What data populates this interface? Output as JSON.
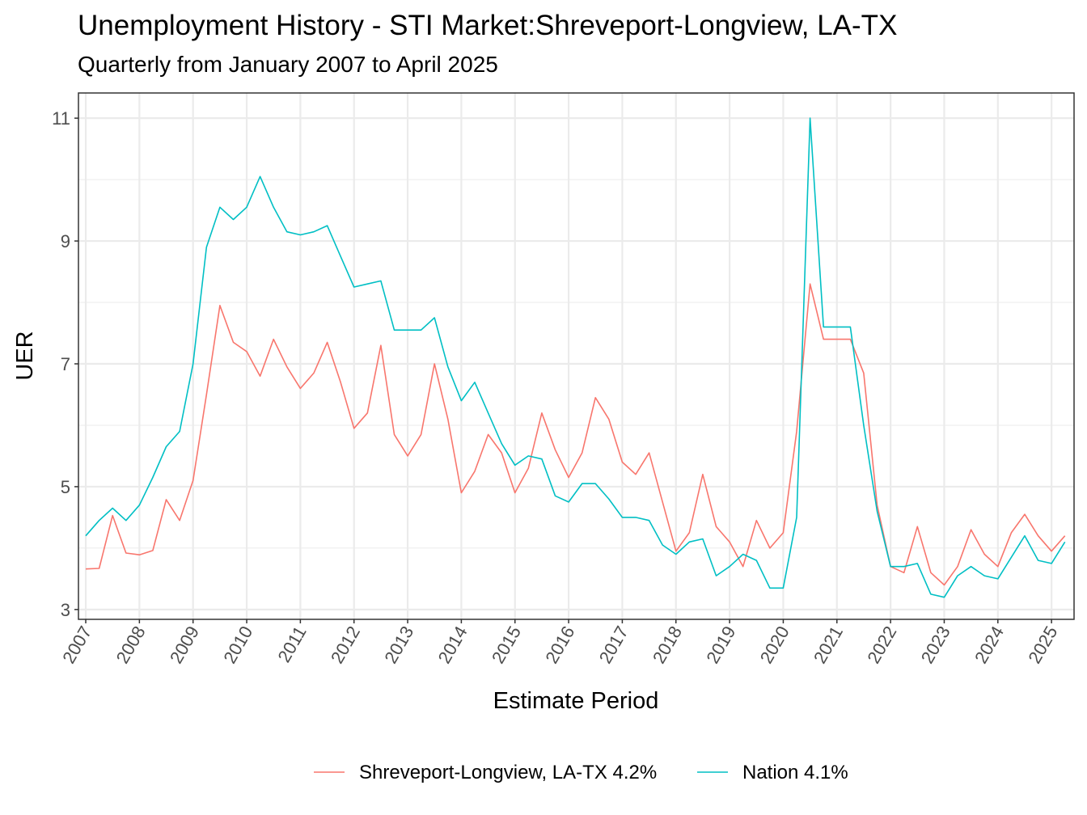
{
  "chart_data": {
    "type": "line",
    "title": "Unemployment History - STI Market:Shreveport-Longview, LA-TX",
    "subtitle": "Quarterly from January 2007 to April 2025",
    "xlabel": "Estimate Period",
    "ylabel": "UER",
    "x_ticks": [
      "2007",
      "2008",
      "2009",
      "2010",
      "2011",
      "2012",
      "2013",
      "2014",
      "2015",
      "2016",
      "2017",
      "2018",
      "2019",
      "2020",
      "2021",
      "2022",
      "2023",
      "2024",
      "2025"
    ],
    "y_ticks": [
      3,
      5,
      7,
      9,
      11
    ],
    "ylim": [
      2.84,
      11.41
    ],
    "xlim": [
      "2007-01",
      "2025-04"
    ],
    "grid": true,
    "legend_position": "bottom",
    "x_start": "2007-01",
    "x_step": "quarter",
    "series": [
      {
        "name": "Shreveport-Longview, LA-TX 4.2%",
        "color": "#F8766D",
        "values": [
          3.66,
          3.67,
          4.53,
          3.92,
          3.89,
          3.96,
          4.79,
          4.45,
          5.1,
          6.5,
          7.95,
          7.35,
          7.2,
          6.8,
          7.4,
          6.95,
          6.6,
          6.85,
          7.35,
          6.7,
          5.95,
          6.2,
          7.3,
          5.85,
          5.5,
          5.85,
          7.0,
          6.1,
          4.9,
          5.25,
          5.85,
          5.55,
          4.9,
          5.3,
          6.2,
          5.6,
          5.15,
          5.55,
          6.45,
          6.1,
          5.4,
          5.2,
          5.55,
          4.75,
          3.95,
          4.25,
          5.2,
          4.35,
          4.1,
          3.7,
          4.45,
          4.0,
          4.25,
          5.9,
          8.3,
          7.4,
          7.4,
          7.4,
          6.85,
          4.7,
          3.7,
          3.6,
          4.35,
          3.6,
          3.4,
          3.7,
          4.3,
          3.9,
          3.7,
          4.25,
          4.55,
          4.2,
          3.95,
          4.2
        ]
      },
      {
        "name": "Nation 4.1%",
        "color": "#00BFC4",
        "values": [
          4.2,
          4.45,
          4.65,
          4.45,
          4.7,
          5.15,
          5.65,
          5.9,
          7.0,
          8.9,
          9.55,
          9.35,
          9.55,
          10.05,
          9.55,
          9.15,
          9.1,
          9.15,
          9.25,
          8.75,
          8.25,
          8.3,
          8.35,
          7.55,
          7.55,
          7.55,
          7.75,
          6.95,
          6.4,
          6.7,
          6.2,
          5.7,
          5.35,
          5.5,
          5.45,
          4.85,
          4.75,
          5.05,
          5.05,
          4.8,
          4.5,
          4.5,
          4.45,
          4.05,
          3.9,
          4.1,
          4.15,
          3.55,
          3.7,
          3.9,
          3.8,
          3.35,
          3.35,
          4.5,
          11.0,
          7.6,
          7.6,
          7.6,
          6.0,
          4.6,
          3.7,
          3.7,
          3.75,
          3.25,
          3.2,
          3.55,
          3.7,
          3.55,
          3.5,
          3.85,
          4.2,
          3.8,
          3.75,
          4.1
        ]
      }
    ]
  }
}
